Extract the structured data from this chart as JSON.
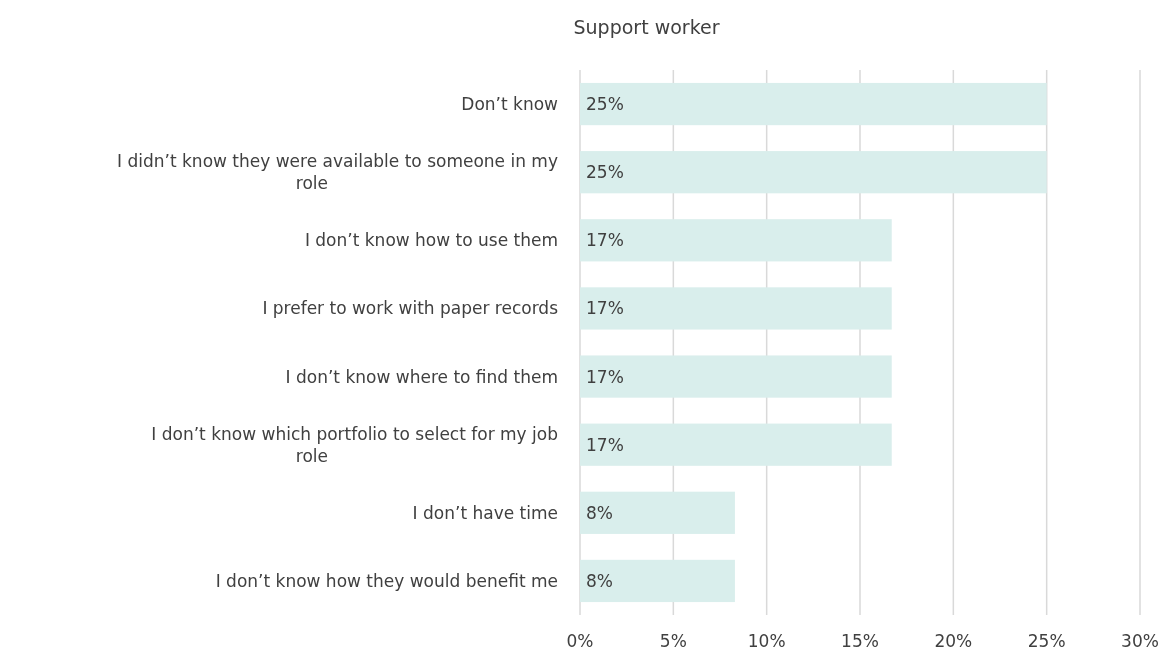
{
  "chart_data": {
    "type": "bar",
    "orientation": "horizontal",
    "title": "Support worker",
    "categories": [
      "Don’t know",
      "I didn’t know they were available to someone in my role",
      "I don’t know how to use them",
      "I prefer to work with paper records",
      "I don’t know where to find them",
      "I don’t know which portfolio to select for my job role",
      "I don’t have time",
      "I don’t know how they would benefit me"
    ],
    "values": [
      25,
      25,
      16.7,
      16.7,
      16.7,
      16.7,
      8.3,
      8.3
    ],
    "value_labels": [
      "25%",
      "25%",
      "17%",
      "17%",
      "17%",
      "17%",
      "8%",
      "8%"
    ],
    "color": "#d9eeec",
    "xlim": [
      0,
      30
    ],
    "xticks": [
      {
        "value": 0,
        "label": "0%"
      },
      {
        "value": 5,
        "label": "5%"
      },
      {
        "value": 10,
        "label": "10%"
      },
      {
        "value": 15,
        "label": "15%"
      },
      {
        "value": 20,
        "label": "20%"
      },
      {
        "value": 25,
        "label": "25%"
      },
      {
        "value": 30,
        "label": "30%"
      }
    ],
    "grid": "x"
  }
}
